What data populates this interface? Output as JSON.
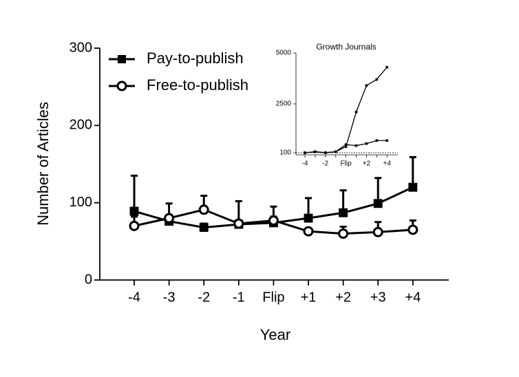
{
  "chart_data": [
    {
      "type": "line",
      "xlabel": "Year",
      "ylabel": "Number of Articles",
      "categories": [
        "-4",
        "-3",
        "-2",
        "-1",
        "Flip",
        "+1",
        "+2",
        "+3",
        "+4"
      ],
      "ylim": [
        0,
        300
      ],
      "yticks": [
        0,
        100,
        200,
        300
      ],
      "legend": "top-left",
      "series": [
        {
          "name": "Pay-to-publish",
          "color": "#000000",
          "marker": "square",
          "filled": true,
          "values": [
            89,
            76,
            68,
            72,
            74,
            80,
            87,
            99,
            120
          ],
          "errors": [
            46,
            23,
            5,
            30,
            21,
            26,
            29,
            33,
            39
          ]
        },
        {
          "name": "Free-to-publish",
          "color": "#000000",
          "marker": "circle",
          "filled": false,
          "values": [
            70,
            80,
            91,
            73,
            77,
            63,
            60,
            62,
            65
          ],
          "errors": [
            12,
            3,
            18,
            4,
            5,
            2,
            9,
            13,
            12
          ]
        }
      ]
    },
    {
      "type": "line",
      "title": "Growth Journals",
      "categories": [
        "-4",
        null,
        "-2",
        null,
        "Flip",
        null,
        "+2",
        null,
        "+4"
      ],
      "ylim": [
        0,
        5000
      ],
      "yticks": [
        100,
        2500,
        5000
      ],
      "refline": 100,
      "series": [
        {
          "color": "#000000",
          "values": [
            100,
            150,
            110,
            150,
            400,
            2100,
            3400,
            3700,
            4300
          ]
        },
        {
          "color": "#000000",
          "values": [
            100,
            150,
            100,
            150,
            500,
            450,
            550,
            700,
            700
          ]
        }
      ]
    }
  ]
}
